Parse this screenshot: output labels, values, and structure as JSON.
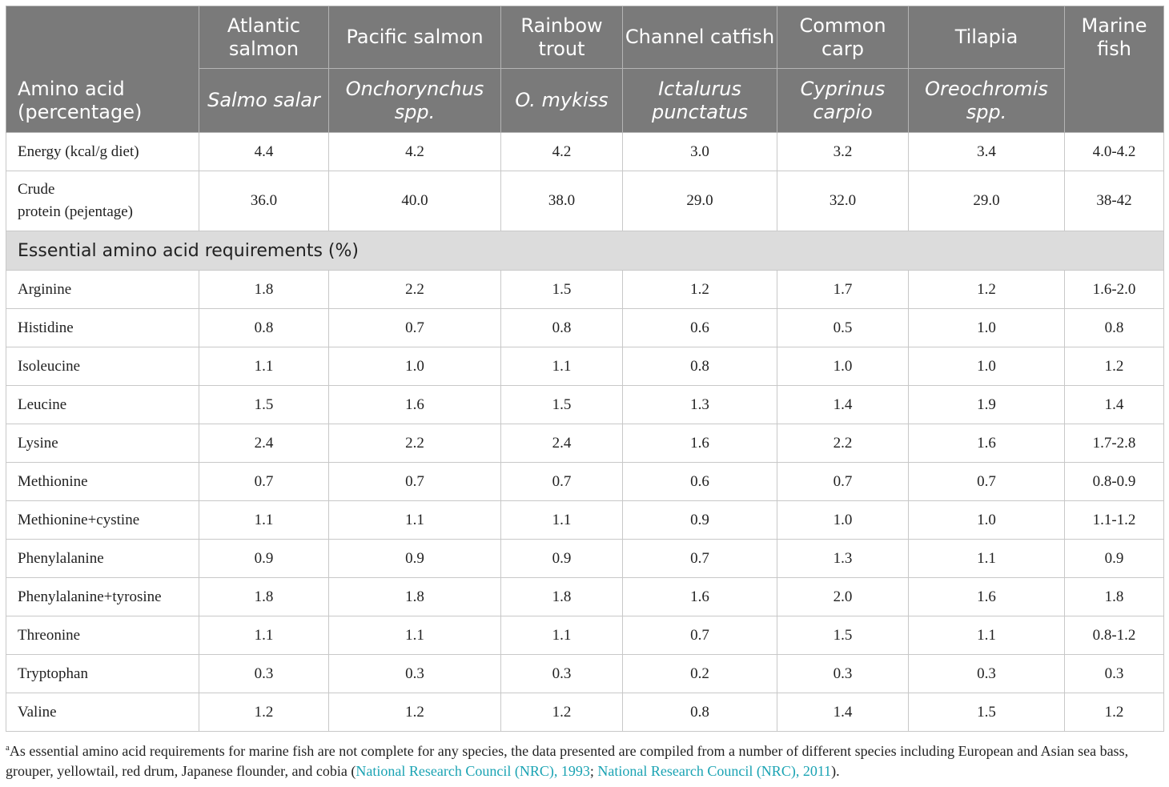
{
  "table": {
    "corner_header": "Amino acid (percentage)",
    "columns": [
      {
        "common": "Atlantic salmon",
        "scientific": "Salmo salar"
      },
      {
        "common": "Pacific salmon",
        "scientific": "Onchorynchus spp."
      },
      {
        "common": "Rainbow trout",
        "scientific": "O. mykiss"
      },
      {
        "common": "Channel catfish",
        "scientific": "Ictalurus punctatus"
      },
      {
        "common": "Common carp",
        "scientific": "Cyprinus carpio"
      },
      {
        "common": "Tilapia",
        "scientific": "Oreochromis spp."
      },
      {
        "common": "Marine fish",
        "scientific": ""
      }
    ],
    "energy_row": {
      "label": "Energy (kcal/g diet)",
      "values": [
        "4.4",
        "4.2",
        "4.2",
        "3.0",
        "3.2",
        "3.4",
        "4.0-4.2"
      ]
    },
    "protein_row": {
      "label_line1": "Crude",
      "label_line2": "protein (pejentage)",
      "values": [
        "36.0",
        "40.0",
        "38.0",
        "29.0",
        "32.0",
        "29.0",
        "38-42"
      ]
    },
    "section_title": "Essential amino acid requirements (%)",
    "rows": [
      {
        "label": "Arginine",
        "values": [
          "1.8",
          "2.2",
          "1.5",
          "1.2",
          "1.7",
          "1.2",
          "1.6-2.0"
        ]
      },
      {
        "label": "Histidine",
        "values": [
          "0.8",
          "0.7",
          "0.8",
          "0.6",
          "0.5",
          "1.0",
          "0.8"
        ]
      },
      {
        "label": "Isoleucine",
        "values": [
          "1.1",
          "1.0",
          "1.1",
          "0.8",
          "1.0",
          "1.0",
          "1.2"
        ]
      },
      {
        "label": "Leucine",
        "values": [
          "1.5",
          "1.6",
          "1.5",
          "1.3",
          "1.4",
          "1.9",
          "1.4"
        ]
      },
      {
        "label": "Lysine",
        "values": [
          "2.4",
          "2.2",
          "2.4",
          "1.6",
          "2.2",
          "1.6",
          "1.7-2.8"
        ]
      },
      {
        "label": "Methionine",
        "values": [
          "0.7",
          "0.7",
          "0.7",
          "0.6",
          "0.7",
          "0.7",
          "0.8-0.9"
        ]
      },
      {
        "label": "Methionine+cystine",
        "values": [
          "1.1",
          "1.1",
          "1.1",
          "0.9",
          "1.0",
          "1.0",
          "1.1-1.2"
        ]
      },
      {
        "label": "Phenylalanine",
        "values": [
          "0.9",
          "0.9",
          "0.9",
          "0.7",
          "1.3",
          "1.1",
          "0.9"
        ]
      },
      {
        "label": "Phenylalanine+tyrosine",
        "values": [
          "1.8",
          "1.8",
          "1.8",
          "1.6",
          "2.0",
          "1.6",
          "1.8"
        ]
      },
      {
        "label": "Threonine",
        "values": [
          "1.1",
          "1.1",
          "1.1",
          "0.7",
          "1.5",
          "1.1",
          "0.8-1.2"
        ]
      },
      {
        "label": "Tryptophan",
        "values": [
          "0.3",
          "0.3",
          "0.3",
          "0.2",
          "0.3",
          "0.3",
          "0.3"
        ]
      },
      {
        "label": "Valine",
        "values": [
          "1.2",
          "1.2",
          "1.2",
          "0.8",
          "1.4",
          "1.5",
          "1.2"
        ]
      }
    ]
  },
  "footnote": {
    "marker": "a",
    "text": "As essential amino acid requirements for marine fish are not complete for any species, the data presented are compiled from a number of different species including European and Asian sea bass, grouper, yellowtail, red drum, Japanese flounder, and cobia (",
    "ref1": "National Research Council (NRC), 1993",
    "separator": "; ",
    "ref2": "National Research Council (NRC), 2011",
    "closing": ")."
  },
  "colors": {
    "header_bg": "#7a7a7a",
    "section_bg": "#dcdcdc",
    "link": "#1aa3b3"
  }
}
